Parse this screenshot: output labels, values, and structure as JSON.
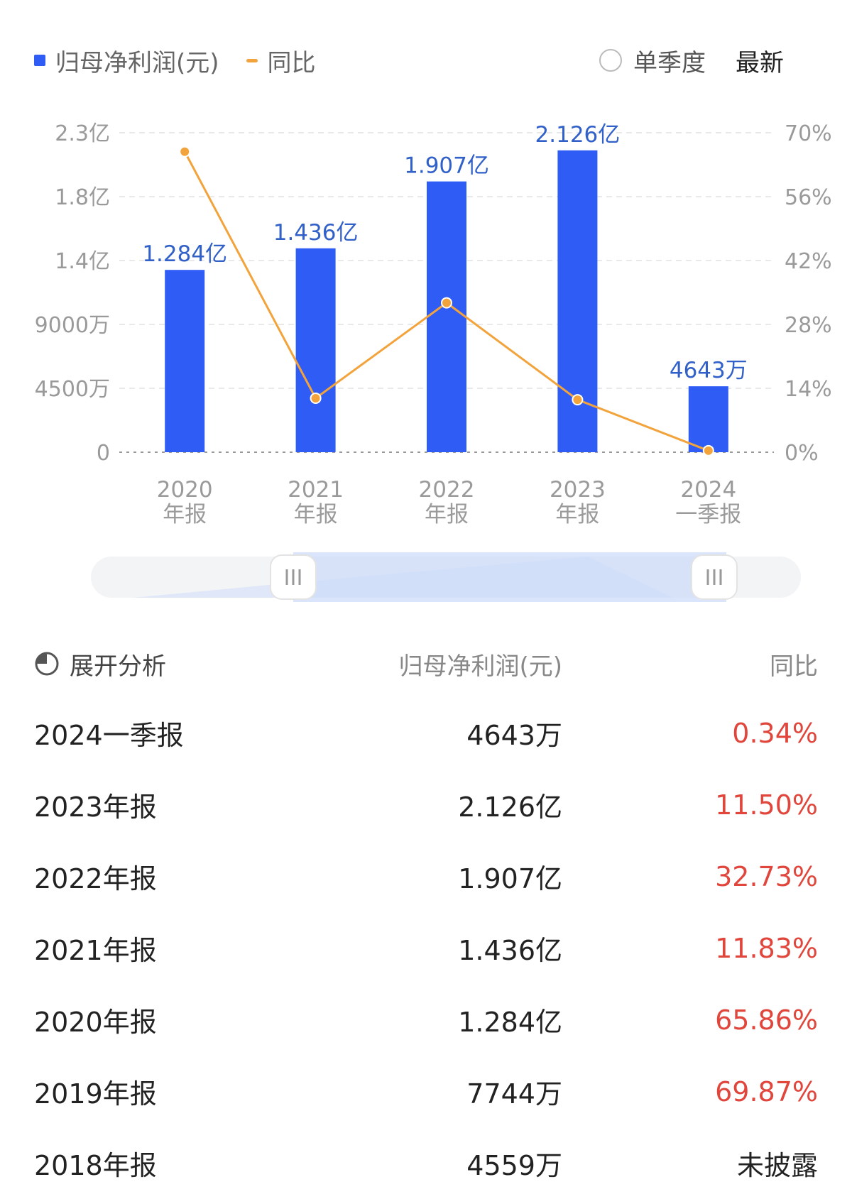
{
  "legend": {
    "bar_label": "归母净利润(元)",
    "line_label": "同比"
  },
  "controls": {
    "quarter_label": "单季度",
    "latest_label": "最新"
  },
  "colors": {
    "bar": "#2f5cf5",
    "line": "#f3a33b",
    "positive": "#e0463c",
    "label": "#3060c8"
  },
  "chart_data": {
    "type": "bar",
    "categories": [
      [
        "2020",
        "年报"
      ],
      [
        "2021",
        "年报"
      ],
      [
        "2022",
        "年报"
      ],
      [
        "2023",
        "年报"
      ],
      [
        "2024",
        "一季报"
      ]
    ],
    "series": [
      {
        "name": "归母净利润(元)",
        "type": "bar",
        "axis": "left",
        "values": [
          128400000,
          143600000,
          190700000,
          212600000,
          46430000
        ],
        "labels": [
          "1.284亿",
          "1.436亿",
          "1.907亿",
          "2.126亿",
          "4643万"
        ]
      },
      {
        "name": "同比",
        "type": "line",
        "axis": "right",
        "values": [
          65.86,
          11.83,
          32.73,
          11.5,
          0.34
        ]
      }
    ],
    "left_axis": {
      "ylim": [
        0,
        225000000
      ],
      "ticks": [
        0,
        45000000,
        90000000,
        135000000,
        180000000,
        225000000
      ],
      "tick_labels": [
        "0",
        "4500万",
        "9000万",
        "1.4亿",
        "1.8亿",
        "2.3亿"
      ]
    },
    "right_axis": {
      "ylim": [
        0,
        70
      ],
      "ticks": [
        0,
        14,
        28,
        42,
        56,
        70
      ],
      "tick_labels": [
        "0%",
        "14%",
        "28%",
        "42%",
        "56%",
        "70%"
      ]
    },
    "grid": true,
    "legend": "top-left"
  },
  "table": {
    "expand_label": "展开分析",
    "col_profit": "归母净利润(元)",
    "col_yoy": "同比",
    "rows": [
      {
        "period": "2024一季报",
        "profit": "4643万",
        "yoy": "0.34%"
      },
      {
        "period": "2023年报",
        "profit": "2.126亿",
        "yoy": "11.50%"
      },
      {
        "period": "2022年报",
        "profit": "1.907亿",
        "yoy": "32.73%"
      },
      {
        "period": "2021年报",
        "profit": "1.436亿",
        "yoy": "11.83%"
      },
      {
        "period": "2020年报",
        "profit": "1.284亿",
        "yoy": "65.86%"
      },
      {
        "period": "2019年报",
        "profit": "7744万",
        "yoy": "69.87%"
      },
      {
        "period": "2018年报",
        "profit": "4559万",
        "yoy": "未披露"
      }
    ]
  }
}
